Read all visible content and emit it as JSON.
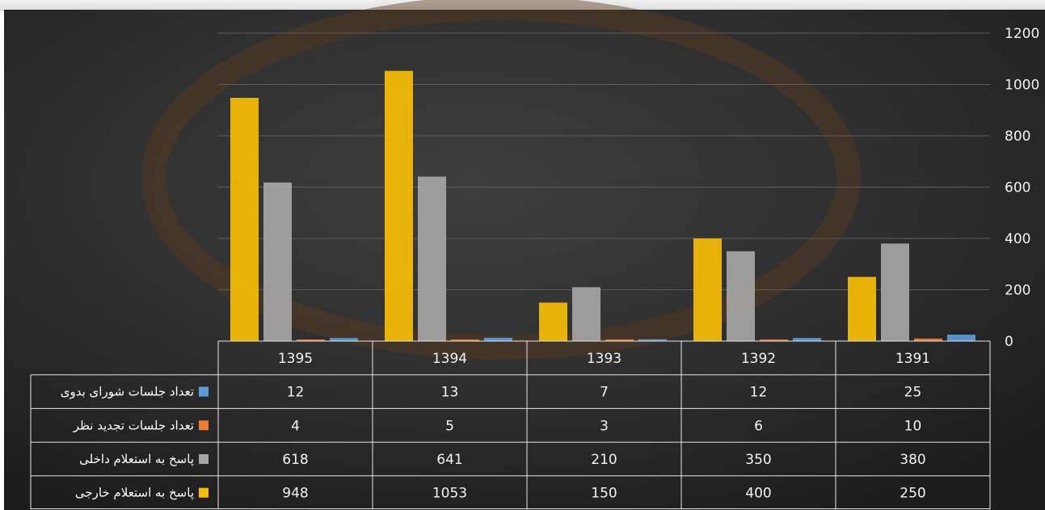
{
  "chart_data": {
    "type": "bar",
    "categories": [
      "1395",
      "1394",
      "1393",
      "1392",
      "1391"
    ],
    "series": [
      {
        "name": "پاسخ به استعلام خارجی",
        "color": "#f5bd05",
        "values": [
          948,
          1053,
          150,
          400,
          250
        ]
      },
      {
        "name": "پاسخ به استعلام داخلی",
        "color": "#a5a5a5",
        "values": [
          618,
          641,
          210,
          350,
          380
        ]
      },
      {
        "name": "تعداد جلسات تجدید نظر",
        "color": "#ed7d31",
        "values": [
          4,
          5,
          3,
          6,
          10
        ]
      },
      {
        "name": "تعداد جلسات شورای بدوی",
        "color": "#5b9bd5",
        "values": [
          12,
          13,
          7,
          12,
          25
        ]
      }
    ],
    "table_row_order": [
      3,
      2,
      1,
      0
    ],
    "ylim": [
      0,
      1200
    ],
    "yticks": [
      0,
      200,
      400,
      600,
      800,
      1000,
      1200
    ],
    "y_axis_side": "right",
    "grid": true,
    "legend": "data table below chart with color keys",
    "title": "",
    "xlabel": "",
    "ylabel": ""
  }
}
